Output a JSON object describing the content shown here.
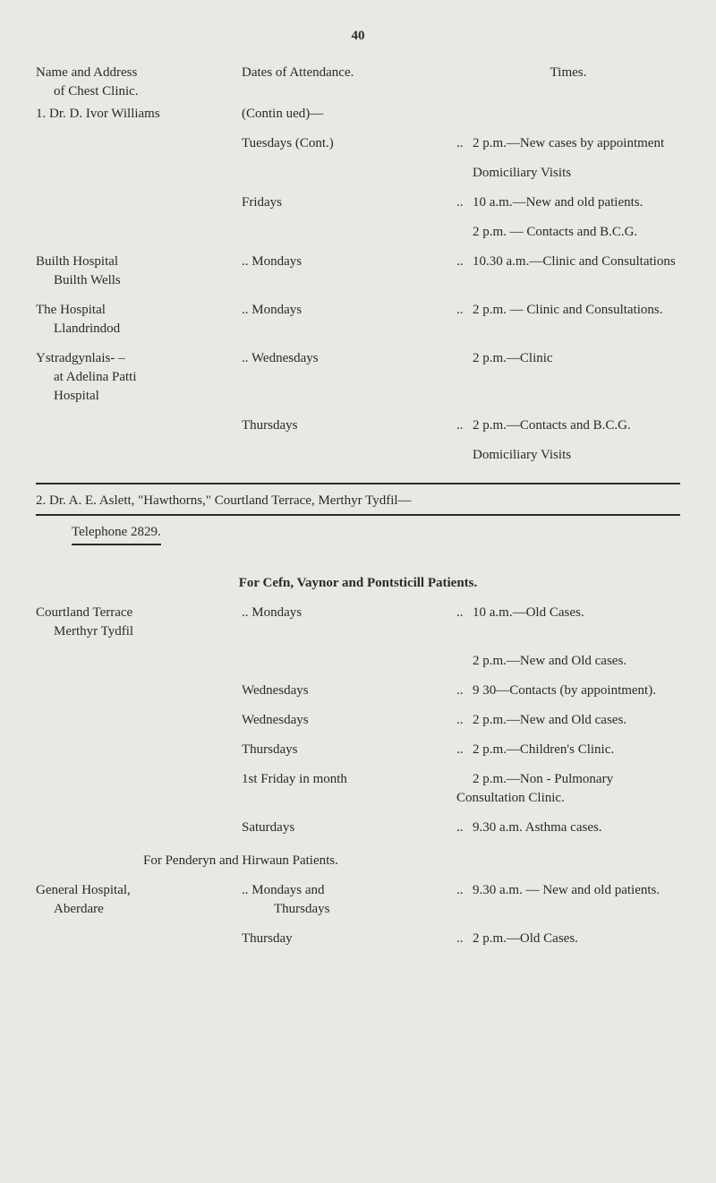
{
  "pageNumber": "40",
  "headers": {
    "col1_line1": "Name and Address",
    "col1_line2": "of Chest Clinic.",
    "col2": "Dates of Attendance.",
    "col3": "Times."
  },
  "doctor1": {
    "name": "1.  Dr. D. Ivor Williams",
    "continued": "(Contin ued)—",
    "entries": [
      {
        "location": "",
        "day": "Tuesdays (Cont.)",
        "dots": "..",
        "times": "2 p.m.—New cases by appointment"
      },
      {
        "location": "",
        "day": "",
        "dots": "",
        "times": "Domiciliary Visits"
      },
      {
        "location": "",
        "day": "Fridays",
        "dots": "..",
        "times": "10 a.m.—New and old patients."
      },
      {
        "location": "",
        "day": "",
        "dots": "",
        "times": "2 p.m. — Contacts and B.C.G."
      },
      {
        "location": "Builth Hospital",
        "location2": "Builth Wells",
        "day": ".. Mondays",
        "dots": "..",
        "times": "10.30 a.m.—Clinic and Consultations"
      },
      {
        "location": "The Hospital",
        "location2": "Llandrindod",
        "day": ".. Mondays",
        "dots": "..",
        "times": "2 p.m. — Clinic and Consultations."
      },
      {
        "location": "Ystradgynlais- –",
        "location2": "at Adelina Patti",
        "location3": "Hospital",
        "day": ".. Wednesdays",
        "dots": "",
        "times": "2 p.m.—Clinic"
      },
      {
        "location": "",
        "day": "Thursdays",
        "dots": "..",
        "times": "2 p.m.—Contacts and B.C.G."
      },
      {
        "location": "",
        "day": "",
        "dots": "",
        "times": "Domiciliary Visits"
      }
    ]
  },
  "doctor2": {
    "name": "2.  Dr. A. E. Aslett, \"Hawthorns,\" Courtland Terrace, Merthyr Tydfil—",
    "telephone": "Telephone 2829.",
    "section1": {
      "title": "For Cefn, Vaynor and Pontsticill Patients.",
      "entries": [
        {
          "location": "Courtland Terrace",
          "location2": "Merthyr Tydfil",
          "day": ".. Mondays",
          "dots": "..",
          "times": "10 a.m.—Old Cases."
        },
        {
          "location": "",
          "day": "",
          "dots": "",
          "times": "2 p.m.—New and Old cases."
        },
        {
          "location": "",
          "day": "Wednesdays",
          "dots": "..",
          "times": "9 30—Contacts (by appointment)."
        },
        {
          "location": "",
          "day": "Wednesdays",
          "dots": "..",
          "times": "2 p.m.—New and Old cases."
        },
        {
          "location": "",
          "day": "Thursdays",
          "dots": "..",
          "times": "2 p.m.—Children's Clinic."
        },
        {
          "location": "",
          "day": "1st Friday in month",
          "dots": "",
          "times": "2 p.m.—Non - Pulmonary Consultation Clinic."
        },
        {
          "location": "",
          "day": "Saturdays",
          "dots": "..",
          "times": "9.30 a.m. Asthma cases."
        }
      ]
    },
    "section2": {
      "title": "For Penderyn and Hirwaun Patients.",
      "entries": [
        {
          "location": "General Hospital,",
          "location2": "Aberdare",
          "day": ".. Mondays and",
          "day2": "Thursdays",
          "dots": "..",
          "times": "9.30 a.m. — New and old patients."
        },
        {
          "location": "",
          "day": "Thursday",
          "dots": "..",
          "times": "2 p.m.—Old Cases."
        }
      ]
    }
  }
}
